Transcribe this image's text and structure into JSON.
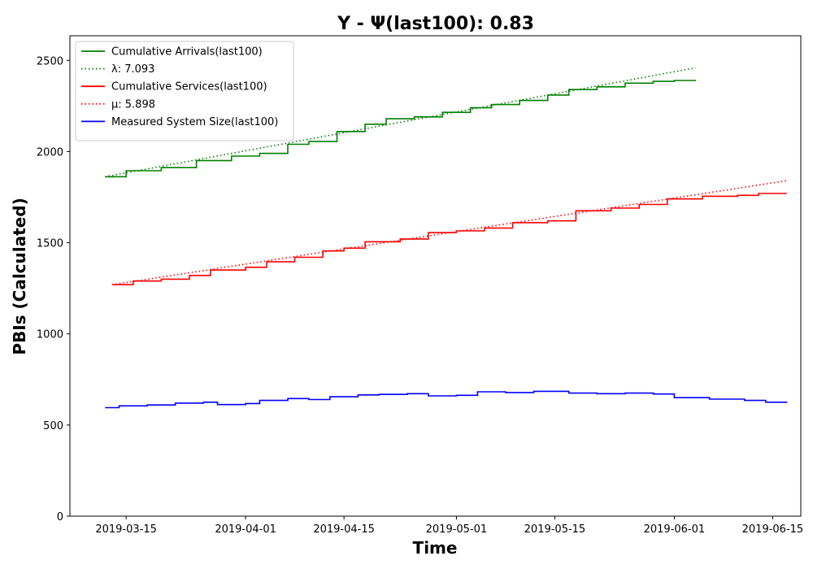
{
  "chart_data": {
    "type": "line",
    "title": "Y -  Ψ(last100): 0.83",
    "xlabel": "Time",
    "ylabel": "PBIs (Calculated)",
    "xlim": [
      "2019-03-07",
      "2019-06-19"
    ],
    "ylim": [
      0,
      2635
    ],
    "x_ticks": [
      "2019-03-15",
      "2019-04-01",
      "2019-04-15",
      "2019-05-01",
      "2019-05-15",
      "2019-06-01",
      "2019-06-15"
    ],
    "y_ticks": [
      0,
      500,
      1000,
      1500,
      2000,
      2500
    ],
    "grid": false,
    "legend": {
      "placement": "top-left"
    },
    "series": [
      {
        "name": "Cumulative Arrivals(last100)",
        "color": "#008000",
        "style": "solid",
        "points": [
          [
            "2019-03-12",
            1862
          ],
          [
            "2019-03-15",
            1895
          ],
          [
            "2019-03-20",
            1912
          ],
          [
            "2019-03-25",
            1950
          ],
          [
            "2019-03-30",
            1975
          ],
          [
            "2019-04-03",
            1990
          ],
          [
            "2019-04-07",
            2040
          ],
          [
            "2019-04-10",
            2055
          ],
          [
            "2019-04-14",
            2110
          ],
          [
            "2019-04-18",
            2150
          ],
          [
            "2019-04-21",
            2180
          ],
          [
            "2019-04-25",
            2190
          ],
          [
            "2019-04-29",
            2215
          ],
          [
            "2019-05-03",
            2240
          ],
          [
            "2019-05-06",
            2258
          ],
          [
            "2019-05-10",
            2280
          ],
          [
            "2019-05-14",
            2310
          ],
          [
            "2019-05-17",
            2340
          ],
          [
            "2019-05-21",
            2355
          ],
          [
            "2019-05-25",
            2375
          ],
          [
            "2019-05-29",
            2385
          ],
          [
            "2019-06-01",
            2390
          ],
          [
            "2019-06-04",
            2393
          ]
        ]
      },
      {
        "name": "λ: 7.093",
        "color": "#008000",
        "style": "dotted",
        "points": [
          [
            "2019-03-12",
            1862
          ],
          [
            "2019-06-04",
            2459
          ]
        ]
      },
      {
        "name": "Cumulative Services(last100)",
        "color": "#ff0000",
        "style": "solid",
        "points": [
          [
            "2019-03-13",
            1270
          ],
          [
            "2019-03-16",
            1290
          ],
          [
            "2019-03-20",
            1300
          ],
          [
            "2019-03-24",
            1320
          ],
          [
            "2019-03-27",
            1350
          ],
          [
            "2019-04-01",
            1365
          ],
          [
            "2019-04-04",
            1395
          ],
          [
            "2019-04-08",
            1420
          ],
          [
            "2019-04-12",
            1455
          ],
          [
            "2019-04-15",
            1470
          ],
          [
            "2019-04-18",
            1505
          ],
          [
            "2019-04-23",
            1520
          ],
          [
            "2019-04-27",
            1555
          ],
          [
            "2019-05-01",
            1565
          ],
          [
            "2019-05-05",
            1580
          ],
          [
            "2019-05-09",
            1610
          ],
          [
            "2019-05-14",
            1620
          ],
          [
            "2019-05-18",
            1675
          ],
          [
            "2019-05-23",
            1690
          ],
          [
            "2019-05-27",
            1710
          ],
          [
            "2019-05-31",
            1740
          ],
          [
            "2019-06-05",
            1755
          ],
          [
            "2019-06-10",
            1760
          ],
          [
            "2019-06-13",
            1770
          ],
          [
            "2019-06-17",
            1770
          ]
        ]
      },
      {
        "name": "μ: 5.898",
        "color": "#ff0000",
        "style": "dotted",
        "points": [
          [
            "2019-03-13",
            1270
          ],
          [
            "2019-06-17",
            1840
          ]
        ]
      },
      {
        "name": "Measured System Size(last100)",
        "color": "#0000ff",
        "style": "solid",
        "points": [
          [
            "2019-03-12",
            595
          ],
          [
            "2019-03-14",
            605
          ],
          [
            "2019-03-18",
            610
          ],
          [
            "2019-03-22",
            620
          ],
          [
            "2019-03-26",
            625
          ],
          [
            "2019-03-28",
            612
          ],
          [
            "2019-04-01",
            618
          ],
          [
            "2019-04-03",
            635
          ],
          [
            "2019-04-07",
            645
          ],
          [
            "2019-04-10",
            640
          ],
          [
            "2019-04-13",
            655
          ],
          [
            "2019-04-17",
            665
          ],
          [
            "2019-04-20",
            668
          ],
          [
            "2019-04-24",
            672
          ],
          [
            "2019-04-27",
            660
          ],
          [
            "2019-05-01",
            663
          ],
          [
            "2019-05-04",
            682
          ],
          [
            "2019-05-08",
            678
          ],
          [
            "2019-05-12",
            685
          ],
          [
            "2019-05-17",
            675
          ],
          [
            "2019-05-21",
            672
          ],
          [
            "2019-05-25",
            675
          ],
          [
            "2019-05-29",
            670
          ],
          [
            "2019-06-01",
            650
          ],
          [
            "2019-06-06",
            642
          ],
          [
            "2019-06-11",
            635
          ],
          [
            "2019-06-14",
            625
          ],
          [
            "2019-06-17",
            623
          ]
        ]
      }
    ]
  }
}
